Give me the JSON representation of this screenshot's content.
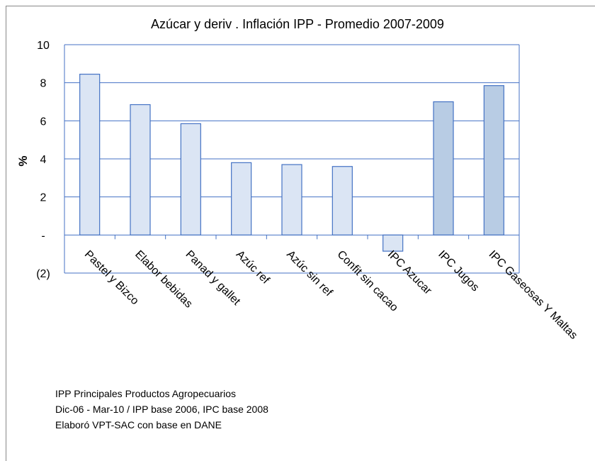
{
  "chart_data": {
    "type": "bar",
    "title": "Azúcar y deriv . Inflación IPP - Promedio 2007-2009",
    "y_label": "%",
    "categories": [
      "Pastel y Bizco",
      "Elabor bebidas",
      "Panad y gallet",
      "Azúc ref",
      "Azúc sin ref",
      "Confit sin cacao",
      "IPC Azucar",
      "IPC Jugos",
      "IPC Gaseosas Y Maltas"
    ],
    "values": [
      8.45,
      6.85,
      5.85,
      3.8,
      3.7,
      3.6,
      -0.85,
      7.0,
      7.85
    ],
    "colors": [
      "#dbe5f4",
      "#dbe5f4",
      "#dbe5f4",
      "#dbe5f4",
      "#dbe5f4",
      "#dbe5f4",
      "#dbe5f4",
      "#b8cce4",
      "#b8cce4"
    ],
    "border_color": "#4472c4",
    "ylim": [
      -2,
      10
    ],
    "yticks": [
      {
        "value": -2,
        "label": "(2)"
      },
      {
        "value": 0,
        "label": "-"
      },
      2,
      4,
      6,
      8,
      10
    ],
    "grid": true,
    "notes": [
      "IPP Principales Productos Agropecuarios",
      "Dic-06 - Mar-10 / IPP base 2006, IPC base 2008",
      "Elaboró VPT-SAC con base en DANE"
    ]
  }
}
